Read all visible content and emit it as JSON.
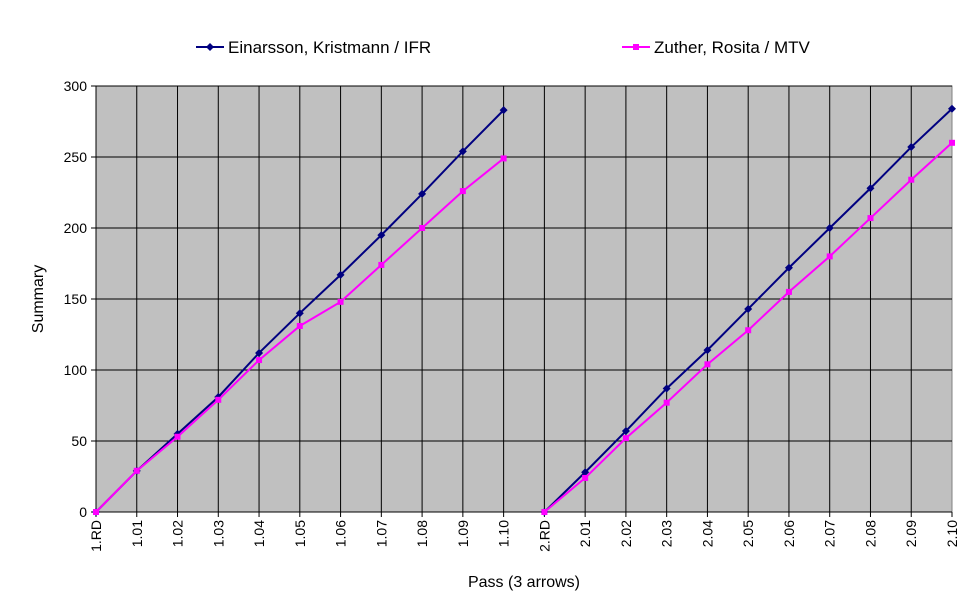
{
  "chart_data": {
    "type": "line",
    "title": "",
    "xlabel": "Pass (3 arrows)",
    "ylabel": "Summary",
    "ylim": [
      0,
      300
    ],
    "yticks": [
      0,
      50,
      100,
      150,
      200,
      250,
      300
    ],
    "grid": true,
    "plot_background": "#c0c0c0",
    "legend_position": "top",
    "categories": [
      "1.RD",
      "1.01",
      "1.02",
      "1.03",
      "1.04",
      "1.05",
      "1.06",
      "1.07",
      "1.08",
      "1.09",
      "1.10",
      "2.RD",
      "2.01",
      "2.02",
      "2.03",
      "2.04",
      "2.05",
      "2.06",
      "2.07",
      "2.08",
      "2.09",
      "2.10"
    ],
    "series": [
      {
        "name": "Einarsson, Kristmann / IFR",
        "color": "#000080",
        "marker": "diamond",
        "segments": [
          [
            0,
            29,
            55,
            81,
            112,
            140,
            167,
            195,
            224,
            254,
            283
          ],
          [
            0,
            28,
            57,
            87,
            114,
            143,
            172,
            200,
            228,
            257,
            284
          ]
        ]
      },
      {
        "name": "Zuther, Rosita / MTV",
        "color": "#ff00ff",
        "marker": "square",
        "segments": [
          [
            0,
            29,
            53,
            79,
            107,
            131,
            148,
            174,
            200,
            226,
            249
          ],
          [
            0,
            24,
            52,
            77,
            104,
            128,
            155,
            180,
            207,
            234,
            260
          ]
        ]
      }
    ]
  }
}
